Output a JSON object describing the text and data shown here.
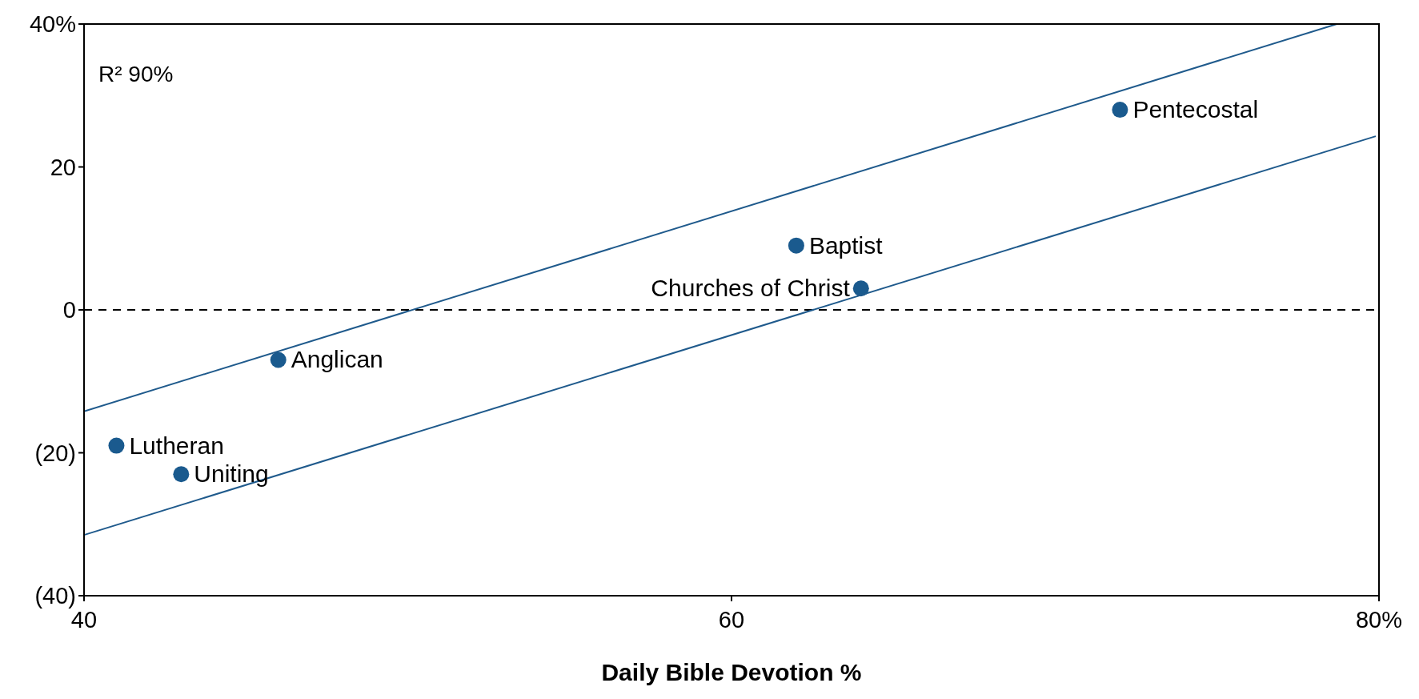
{
  "chart_data": {
    "type": "scatter",
    "xlabel": "Daily Bible Devotion %",
    "xlim": [
      40,
      80
    ],
    "xticks": [
      40,
      60,
      {
        "value": 80,
        "label": "80%"
      }
    ],
    "ylim": [
      -40,
      40
    ],
    "yticks": [
      {
        "value": -40,
        "label": "(40)"
      },
      {
        "value": -20,
        "label": "(20)"
      },
      0,
      20,
      {
        "value": 40,
        "label": "40%"
      }
    ],
    "grid": false,
    "series": [
      {
        "color": "#1a5a8e",
        "marker": "circle",
        "x": [
          41,
          43,
          46,
          62,
          64,
          72
        ],
        "values": [
          -19,
          -23,
          -7,
          9,
          3,
          28
        ]
      },
      {
        "type": "line",
        "color": "#1f5a8c",
        "x": [
          40,
          78.7
        ],
        "values": [
          -14.2,
          40
        ],
        "marker": "none"
      },
      {
        "type": "line",
        "color": "#1f5a8c",
        "x": [
          40,
          79.9
        ],
        "values": [
          -31.5,
          24.3
        ],
        "marker": "none"
      }
    ],
    "ref_lines": [
      {
        "axis": "y",
        "value": 0,
        "color": "#000000",
        "line_style": "dashed"
      }
    ],
    "annotations": [
      "R² 90%",
      {
        "text": "Lutheran",
        "x": 41,
        "y": -19
      },
      {
        "text": "Uniting",
        "x": 43,
        "y": -23
      },
      {
        "text": "Anglican",
        "x": 46,
        "y": -7
      },
      {
        "text": "Baptist",
        "x": 62,
        "y": 9
      },
      {
        "text": "Churches of Christ",
        "x": 64,
        "y": 3
      },
      {
        "text": "Pentecostal",
        "x": 72,
        "y": 28
      }
    ]
  }
}
